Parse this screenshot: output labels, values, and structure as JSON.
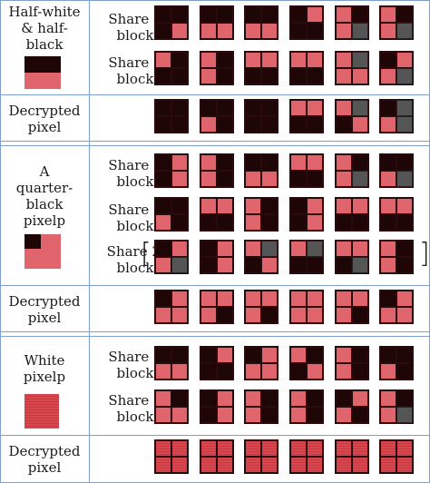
{
  "sections": [
    {
      "label": "Half-white\n& half-\nblack",
      "rows": [
        {
          "label": "Share 1\nblock",
          "blocks": [
            "kkkr",
            "kkrr",
            "kkrr",
            "krkk",
            "rkrg",
            "rkrg"
          ]
        },
        {
          "label": "Share 2\nblock",
          "blocks": [
            "rkkk",
            "rkrk",
            "rrkk",
            "rrkk",
            "rgrr",
            "krrg"
          ]
        }
      ]
    },
    {
      "label": "Decrypted\npixel",
      "rows": [
        {
          "label": "",
          "blocks": [
            "kkkk",
            "kkrk",
            "kkkk",
            "rrkk",
            "rgkr",
            "kgrg"
          ]
        }
      ]
    },
    {
      "label": "A\nquarter-\nblack\npixelp",
      "rows": [
        {
          "label": "Share 1\nblock",
          "blocks": [
            "krkr",
            "rkrk",
            "kkrr",
            "rrkk",
            "rkrg",
            "kkrg"
          ]
        },
        {
          "label": "Share 2\nblock",
          "blocks": [
            "kkrk",
            "rrkk",
            "rkrk",
            "krkr",
            "rrkk",
            "rrkk"
          ]
        },
        {
          "label": "Share 2′\nblock",
          "blocks": [
            "krrg",
            "krkr",
            "rgkr",
            "rgkk",
            "rrkg",
            "rkrk"
          ]
        }
      ]
    },
    {
      "label": "Decrypted\npixel",
      "rows": [
        {
          "label": "",
          "blocks": [
            "krrr",
            "rrrk",
            "rrrk",
            "rrrr",
            "rrrk",
            "krrr"
          ]
        }
      ]
    },
    {
      "label": "White\npixelp",
      "rows": [
        {
          "label": "Share 1\nblock",
          "blocks": [
            "kkrr",
            "krkk",
            "krrr",
            "rkkr",
            "rkrk",
            "kkrk"
          ]
        },
        {
          "label": "Share 2\nblock",
          "blocks": [
            "rkrr",
            "krkr",
            "rkrk",
            "rkrk",
            "krrk",
            "rkrg"
          ]
        }
      ]
    },
    {
      "label": "Decrypted\npixel",
      "rows": [
        {
          "label": "",
          "blocks": [
            "ssss",
            "ssss",
            "ssss",
            "ssss",
            "ssss",
            "ssss"
          ]
        }
      ]
    }
  ],
  "colors": {
    "black": "#1e0506",
    "red": "#e0646c",
    "gray": "#555555",
    "line": "#7f9fcc"
  }
}
